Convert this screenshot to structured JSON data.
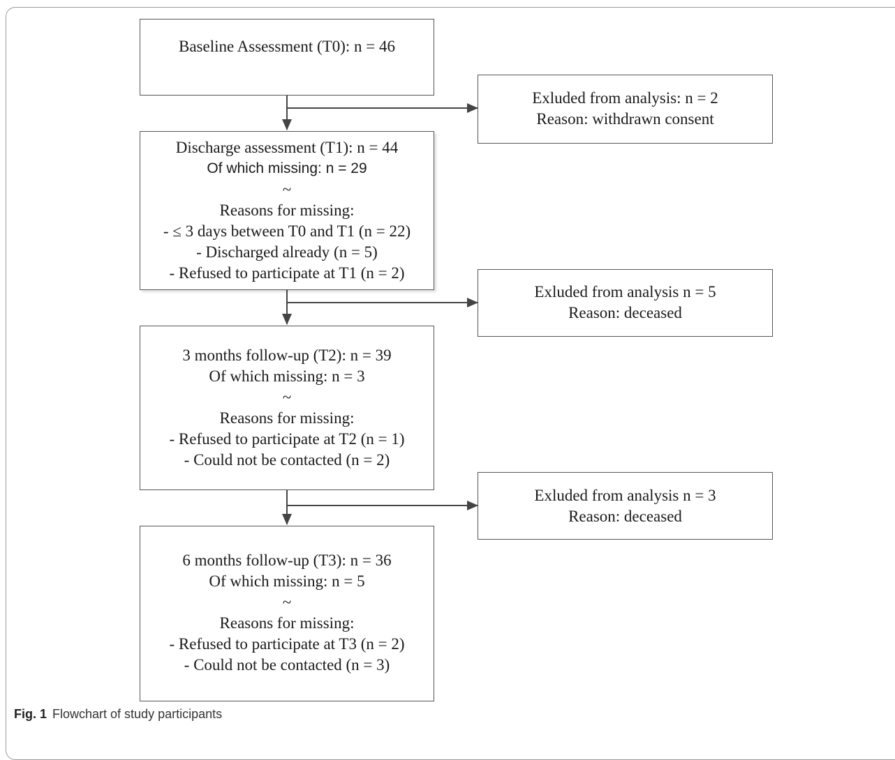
{
  "boxes": {
    "t0": {
      "lines": [
        "Baseline Assessment (T0): n = 46"
      ]
    },
    "t1": {
      "lines": [
        "Discharge assessment (T1): n = 44",
        "Of which missing: n = 29",
        "~",
        "Reasons for missing:",
        "- ≤ 3 days between T0 and T1 (n = 22)",
        "- Discharged already (n = 5)",
        "- Refused to participate at T1 (n = 2)"
      ]
    },
    "t2": {
      "lines": [
        "3 months follow-up (T2): n = 39",
        "Of which missing: n = 3",
        "~",
        "Reasons for missing:",
        "- Refused to participate at T2 (n = 1)",
        "- Could not be contacted (n = 2)"
      ]
    },
    "t3": {
      "lines": [
        "6 months follow-up (T3): n = 36",
        "Of which missing: n = 5",
        "~",
        "Reasons for missing:",
        "- Refused to participate at T3 (n = 2)",
        "- Could not be contacted (n = 3)"
      ]
    },
    "ex1": {
      "lines": [
        "Exluded from analysis: n = 2",
        "Reason: withdrawn consent"
      ]
    },
    "ex2": {
      "lines": [
        "Exluded from analysis n = 5",
        "Reason: deceased"
      ]
    },
    "ex3": {
      "lines": [
        "Exluded from analysis n = 3",
        "Reason: deceased"
      ]
    }
  },
  "caption": {
    "label": "Fig. 1",
    "text": "Flowchart of study participants"
  }
}
